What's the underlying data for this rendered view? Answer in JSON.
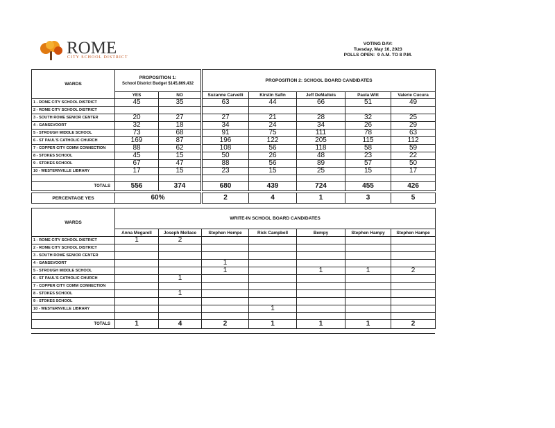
{
  "header": {
    "logo_title": "ROME",
    "logo_subtitle": "CITY SCHOOL DISTRICT",
    "voting_day_label": "VOTING DAY:",
    "date": "Tuesday, May 16, 2023",
    "polls": "POLLS OPEN:  9 A.M. TO 8 P.M."
  },
  "results": {
    "wards_header": "WARDS",
    "prop1_title": "PROPOSITION 1:",
    "prop1_subtitle": "School District Budget $145,869,432",
    "prop2_title": "PROPOSITION 2:  SCHOOL BOARD CANDIDATES",
    "columns": [
      "YES",
      "NO",
      "Suzanne Carvelli",
      "Kirstin Safin",
      "Jeff DeMatteis",
      "Paula Witt",
      "Valerie Cucura"
    ],
    "rows": [
      {
        "ward": "1 - ROME CITY SCHOOL DISTRICT",
        "values": [
          45,
          35,
          63,
          44,
          66,
          51,
          49
        ]
      },
      {
        "ward": "2 - ROME CITY SCHOOL DISTRICT",
        "values": [
          null,
          null,
          null,
          null,
          null,
          null,
          null
        ]
      },
      {
        "ward": "3 - SOUTH ROME SENIOR CENTER",
        "values": [
          20,
          27,
          27,
          21,
          28,
          32,
          25
        ]
      },
      {
        "ward": "4 - GANSEVOORT",
        "values": [
          32,
          18,
          34,
          24,
          34,
          26,
          29
        ]
      },
      {
        "ward": "5 - STROUGH MIDDLE SCHOOL",
        "values": [
          73,
          68,
          91,
          75,
          111,
          78,
          63
        ]
      },
      {
        "ward": "6 - ST PAUL'S CATHOLIC CHURCH",
        "values": [
          169,
          87,
          196,
          122,
          205,
          115,
          112
        ]
      },
      {
        "ward": "7 - COPPER CITY COMM CONNECTION",
        "values": [
          88,
          62,
          108,
          56,
          118,
          58,
          59
        ]
      },
      {
        "ward": "8 - STOKES SCHOOL",
        "values": [
          45,
          15,
          50,
          26,
          48,
          23,
          22
        ]
      },
      {
        "ward": "9 - STOKES SCHOOL",
        "values": [
          67,
          47,
          88,
          56,
          89,
          57,
          50
        ]
      },
      {
        "ward": "10 - WESTERNVILLE LIBRARY",
        "values": [
          17,
          15,
          23,
          15,
          25,
          15,
          17
        ]
      }
    ],
    "totals": {
      "label": "TOTALS",
      "values": [
        556,
        374,
        680,
        439,
        724,
        455,
        426
      ]
    },
    "percentage": {
      "label": "PERCENTAGE YES",
      "prop1": "60%",
      "ranks": [
        2,
        4,
        1,
        3,
        5
      ]
    }
  },
  "write_ins": {
    "wards_header": "WARDS",
    "title": "WRITE-IN SCHOOL BOARD CANDIDATES",
    "columns": [
      "Anna Megarell",
      "Joseph Mellace",
      "Stephen Hempe",
      "Rick Campbell",
      "Bempy",
      "Stephen Hampy",
      "Stephen Hampe"
    ],
    "rows": [
      {
        "ward": "1 - ROME CITY SCHOOL DISTRICT",
        "values": [
          1,
          2,
          null,
          null,
          null,
          null,
          null
        ]
      },
      {
        "ward": "2 - ROME CITY SCHOOL DISTRICT",
        "values": [
          null,
          null,
          null,
          null,
          null,
          null,
          null
        ]
      },
      {
        "ward": "3 - SOUTH ROME SENIOR CENTER",
        "values": [
          null,
          null,
          null,
          null,
          null,
          null,
          null
        ]
      },
      {
        "ward": "4 - GANSEVOORT",
        "values": [
          null,
          null,
          1,
          null,
          null,
          null,
          null
        ]
      },
      {
        "ward": "5 - STROUGH MIDDLE SCHOOL",
        "values": [
          null,
          null,
          1,
          null,
          1,
          1,
          2
        ]
      },
      {
        "ward": "6 - ST PAUL'S CATHOLIC CHURCH",
        "values": [
          null,
          1,
          null,
          null,
          null,
          null,
          null
        ]
      },
      {
        "ward": "7 - COPPER CITY COMM CONNECTION",
        "values": [
          null,
          null,
          null,
          null,
          null,
          null,
          null
        ]
      },
      {
        "ward": "8 - STOKES SCHOOL",
        "values": [
          null,
          1,
          null,
          null,
          null,
          null,
          null
        ]
      },
      {
        "ward": "9 - STOKES SCHOOL",
        "values": [
          null,
          null,
          null,
          null,
          null,
          null,
          null
        ]
      },
      {
        "ward": "10 - WESTERNVILLE LIBRARY",
        "values": [
          null,
          null,
          null,
          1,
          null,
          null,
          null
        ]
      }
    ],
    "totals": {
      "label": "TOTALS",
      "values": [
        1,
        4,
        2,
        1,
        1,
        1,
        2
      ]
    }
  }
}
